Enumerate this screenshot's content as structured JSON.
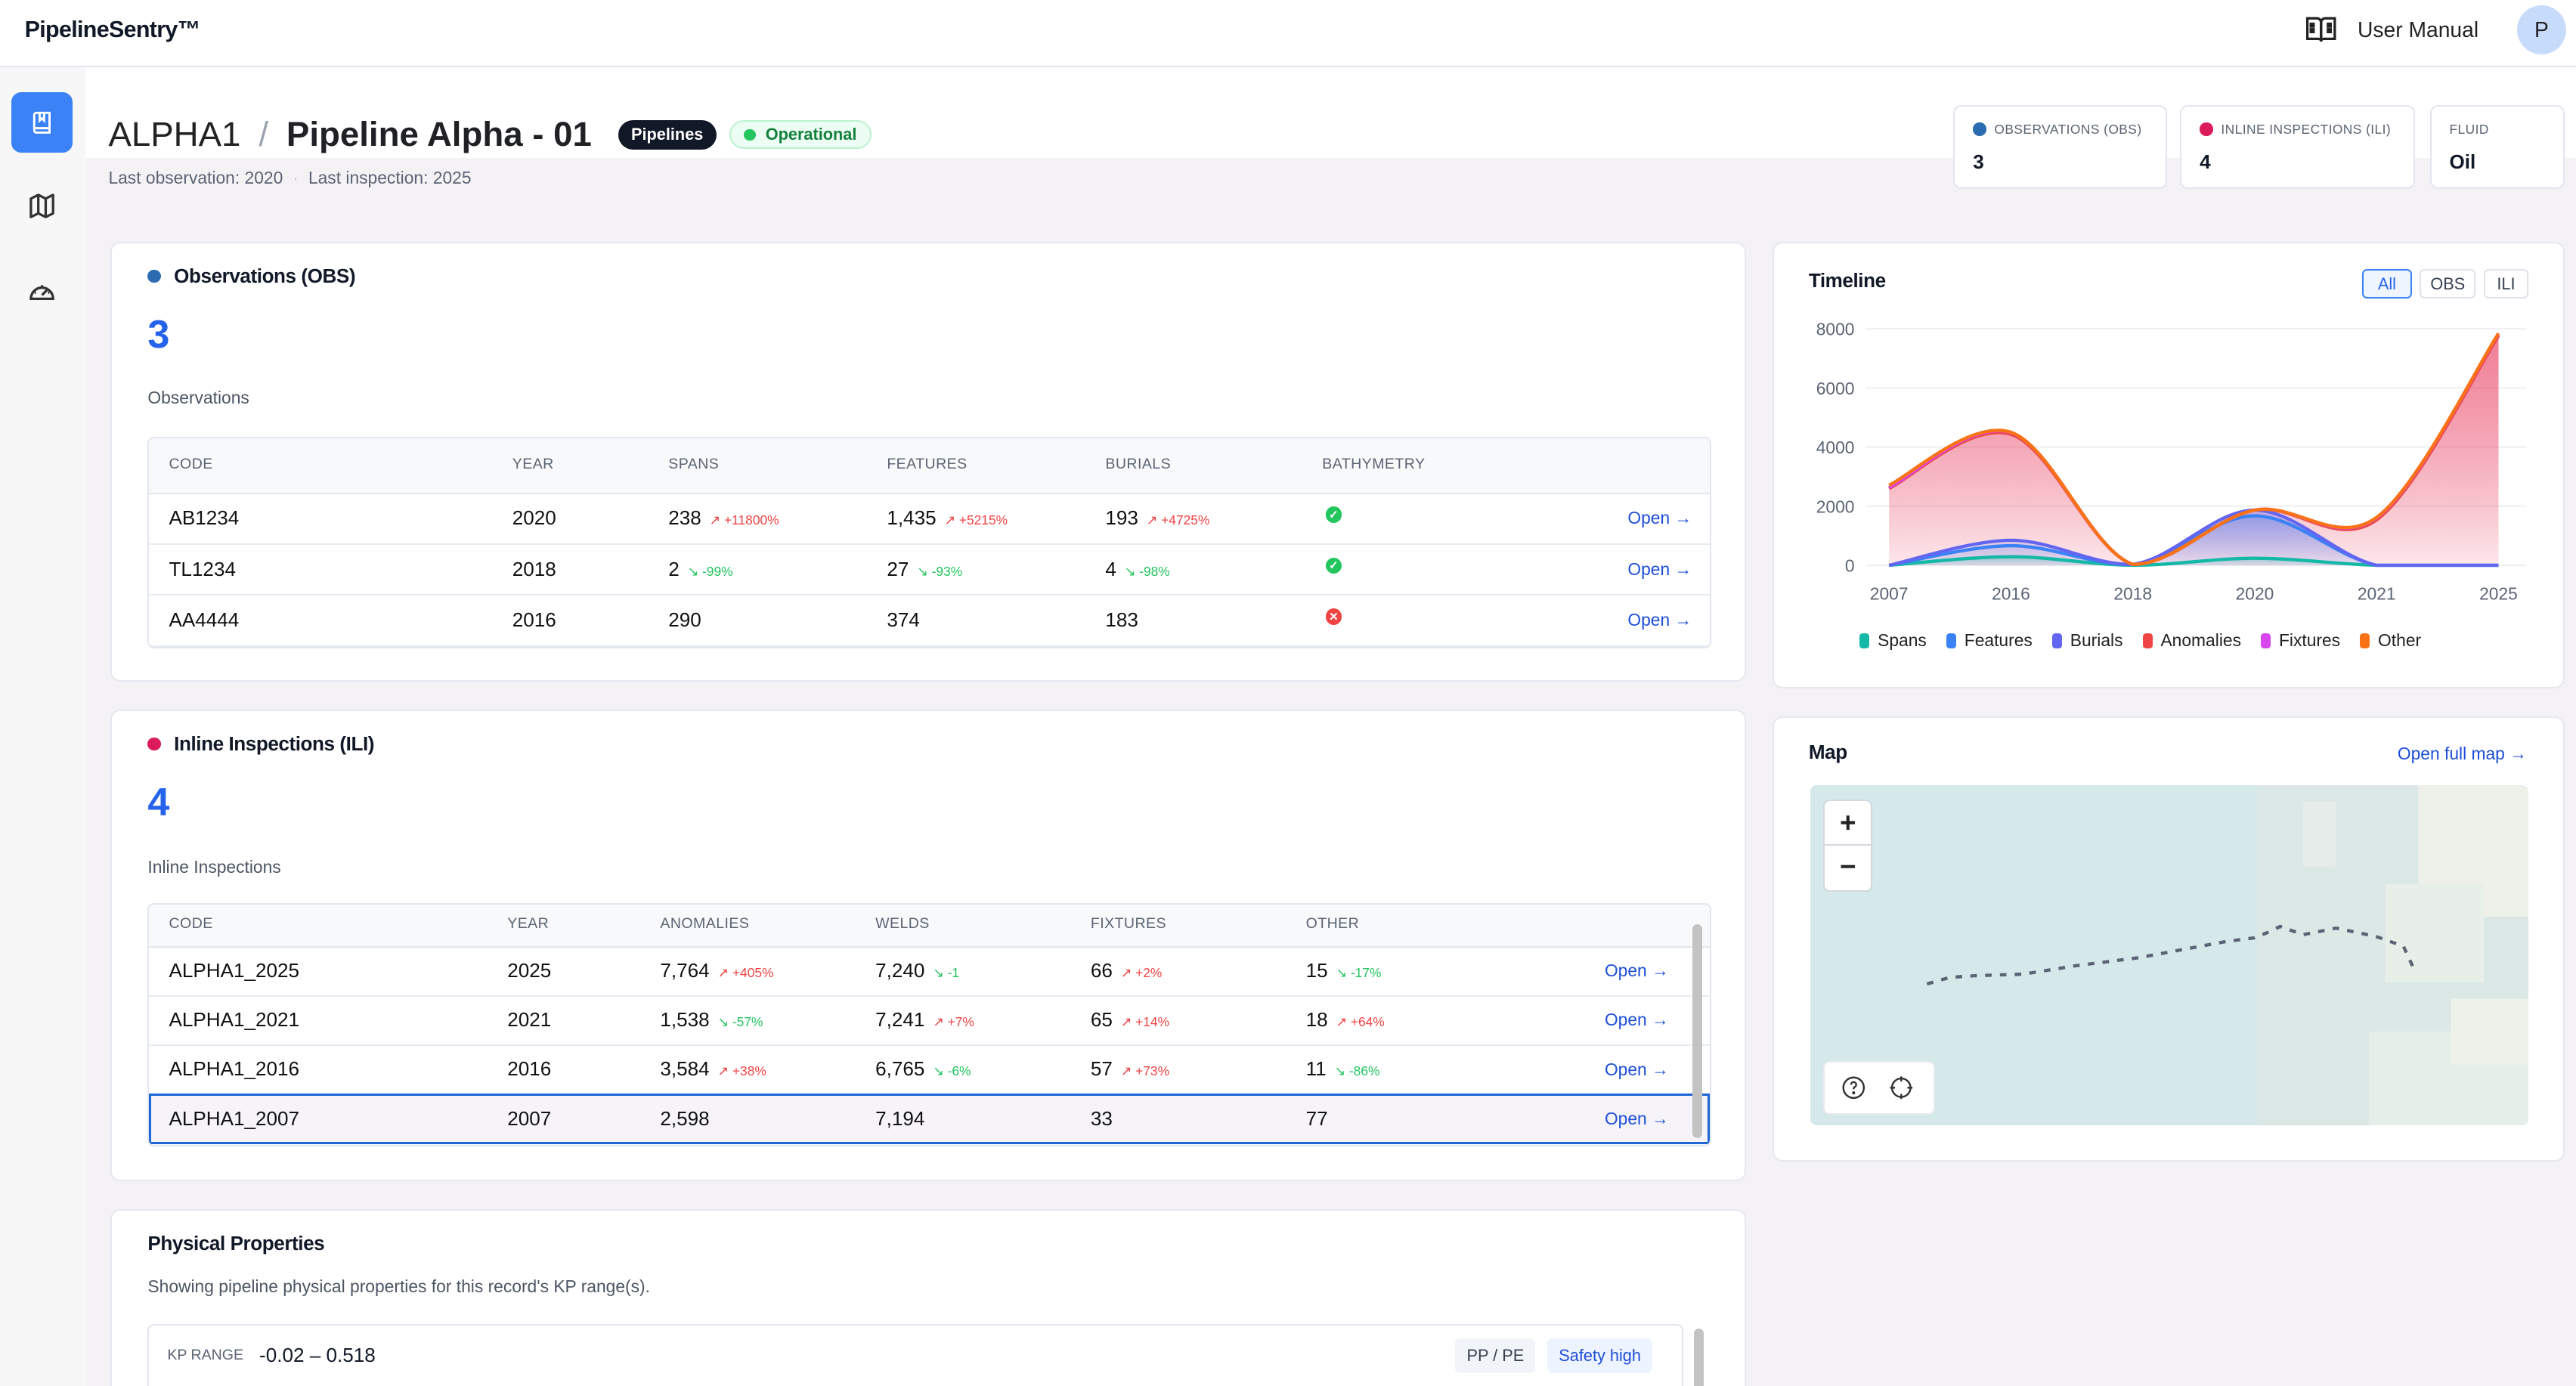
{
  "app": {
    "logo": "PipelineSentry™",
    "user_manual": "User Manual",
    "avatar_initial": "P"
  },
  "sidebar": {
    "items": [
      {
        "name": "records",
        "icon": "book-bookmark-icon",
        "active": true
      },
      {
        "name": "map",
        "icon": "map-icon",
        "active": false
      },
      {
        "name": "dashboard",
        "icon": "gauge-icon",
        "active": false
      }
    ]
  },
  "header": {
    "code": "ALPHA1",
    "separator": "/",
    "name": "Pipeline Alpha - 01",
    "category_badge": "Pipelines",
    "status_badge": "Operational",
    "last_observation": "Last observation: 2020",
    "last_inspection": "Last inspection: 2025",
    "bullet": "·"
  },
  "stats": [
    {
      "label": "OBSERVATIONS (OBS)",
      "value": "3",
      "dot_color": "#2b6cb0"
    },
    {
      "label": "INLINE INSPECTIONS (ILI)",
      "value": "4",
      "dot_color": "#db1b5a"
    },
    {
      "label": "FLUID",
      "value": "Oil"
    }
  ],
  "observations": {
    "title": "Observations (OBS)",
    "dot_color": "#2b6cb0",
    "count": "3",
    "sublabel": "Observations",
    "columns": [
      "CODE",
      "YEAR",
      "SPANS",
      "FEATURES",
      "BURIALS",
      "BATHYMETRY"
    ],
    "rows": [
      {
        "code": "AB1234",
        "year": "2020",
        "spans": "238",
        "spans_delta": "+11800%",
        "spans_dir": "up",
        "features": "1,435",
        "features_delta": "+5215%",
        "features_dir": "up",
        "burials": "193",
        "burials_delta": "+4725%",
        "burials_dir": "up",
        "bathymetry": true,
        "open": "Open →"
      },
      {
        "code": "TL1234",
        "year": "2018",
        "spans": "2",
        "spans_delta": "-99%",
        "spans_dir": "down",
        "features": "27",
        "features_delta": "-93%",
        "features_dir": "down",
        "burials": "4",
        "burials_delta": "-98%",
        "burials_dir": "down",
        "bathymetry": true,
        "open": "Open →"
      },
      {
        "code": "AA4444",
        "year": "2016",
        "spans": "290",
        "features": "374",
        "burials": "183",
        "bathymetry": false,
        "open": "Open →"
      }
    ]
  },
  "inspections": {
    "title": "Inline Inspections (ILI)",
    "dot_color": "#db1b5a",
    "count": "4",
    "sublabel": "Inline Inspections",
    "columns": [
      "CODE",
      "YEAR",
      "ANOMALIES",
      "WELDS",
      "FIXTURES",
      "OTHER"
    ],
    "rows": [
      {
        "code": "ALPHA1_2025",
        "year": "2025",
        "anomalies": "7,764",
        "anomalies_delta": "+405%",
        "anomalies_dir": "up",
        "welds": "7,240",
        "welds_delta": "-1",
        "welds_dir": "down",
        "fixtures": "66",
        "fixtures_delta": "+2%",
        "fixtures_dir": "up",
        "other": "15",
        "other_delta": "-17%",
        "other_dir": "down",
        "open": "Open →"
      },
      {
        "code": "ALPHA1_2021",
        "year": "2021",
        "anomalies": "1,538",
        "anomalies_delta": "-57%",
        "anomalies_dir": "down",
        "welds": "7,241",
        "welds_delta": "+7%",
        "welds_dir": "up",
        "fixtures": "65",
        "fixtures_delta": "+14%",
        "fixtures_dir": "up",
        "other": "18",
        "other_delta": "+64%",
        "other_dir": "up",
        "open": "Open →"
      },
      {
        "code": "ALPHA1_2016",
        "year": "2016",
        "anomalies": "3,584",
        "anomalies_delta": "+38%",
        "anomalies_dir": "up",
        "welds": "6,765",
        "welds_delta": "-6%",
        "welds_dir": "down",
        "fixtures": "57",
        "fixtures_delta": "+73%",
        "fixtures_dir": "up",
        "other": "11",
        "other_delta": "-86%",
        "other_dir": "down",
        "open": "Open →"
      },
      {
        "code": "ALPHA1_2007",
        "year": "2007",
        "anomalies": "2,598",
        "welds": "7,194",
        "fixtures": "33",
        "other": "77",
        "open": "Open →",
        "selected": true
      }
    ]
  },
  "physical": {
    "title": "Physical Properties",
    "description": "Showing pipeline physical properties for this record's KP range(s).",
    "kp_label": "KP RANGE",
    "kp_value": "-0.02 – 0.518",
    "material_badge": "PP / PE",
    "safety_badge": "Safety high"
  },
  "timeline": {
    "title": "Timeline",
    "filters": [
      {
        "label": "All",
        "active": true
      },
      {
        "label": "OBS",
        "active": false
      },
      {
        "label": "ILI",
        "active": false
      }
    ]
  },
  "chart_data": {
    "type": "area",
    "stacked": true,
    "smooth": true,
    "categories": [
      "2007",
      "2016",
      "2018",
      "2020",
      "2021",
      "2025"
    ],
    "ylim": [
      0,
      8000
    ],
    "yticks": [
      "0",
      "2000",
      "4000",
      "6000",
      "8000"
    ],
    "grid": true,
    "legend": "bottom",
    "series": [
      {
        "name": "Spans",
        "color": "#14b8a6",
        "values": [
          0,
          290,
          2,
          238,
          0,
          0
        ]
      },
      {
        "name": "Features",
        "color": "#3b82f6",
        "values": [
          0,
          374,
          27,
          1435,
          0,
          0
        ]
      },
      {
        "name": "Burials",
        "color": "#6366f1",
        "values": [
          0,
          183,
          4,
          193,
          0,
          0
        ]
      },
      {
        "name": "Anomalies",
        "color": "#ef4444",
        "values": [
          2598,
          3584,
          0,
          0,
          1538,
          7764
        ]
      },
      {
        "name": "Fixtures",
        "color": "#d946ef",
        "values": [
          33,
          57,
          0,
          0,
          65,
          66
        ]
      },
      {
        "name": "Other",
        "color": "#f97316",
        "values": [
          77,
          11,
          0,
          0,
          18,
          15
        ]
      }
    ]
  },
  "map": {
    "title": "Map",
    "open_full": "Open full map →",
    "zoom_in": "+",
    "zoom_out": "−"
  }
}
